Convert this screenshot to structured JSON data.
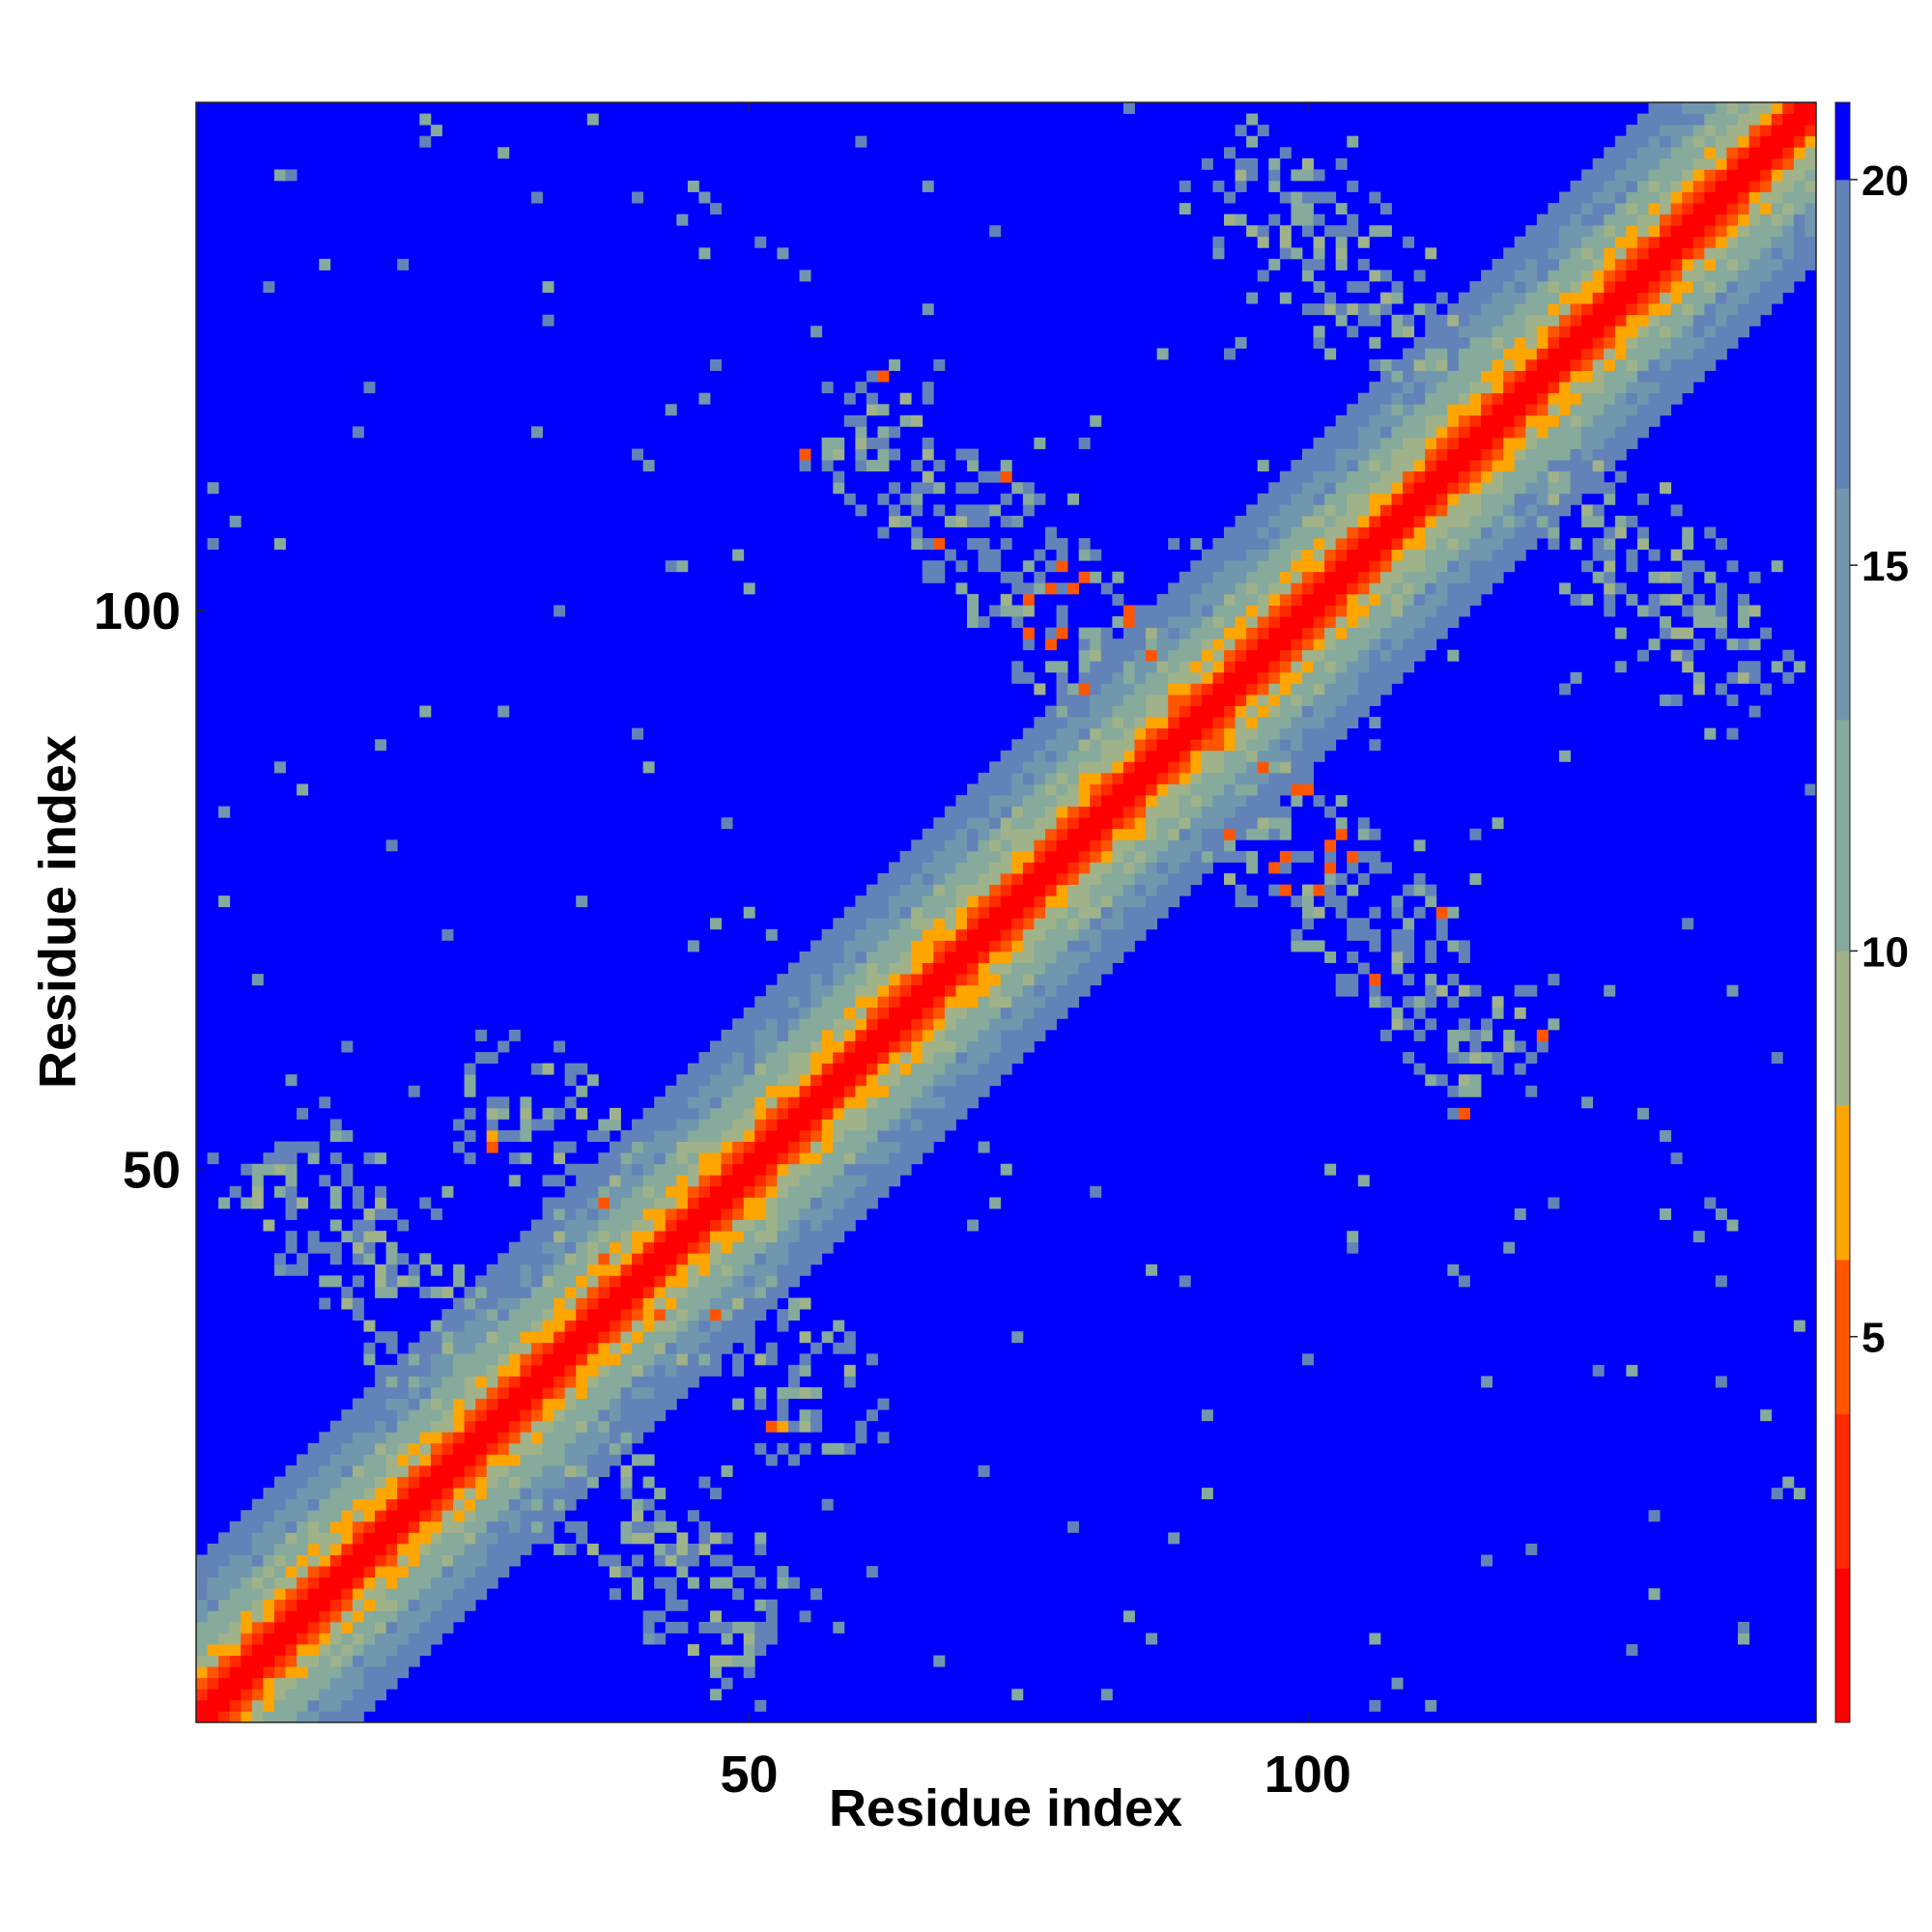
{
  "chart_data": {
    "type": "heatmap",
    "title": "",
    "xlabel": "Residue index",
    "ylabel": "Residue index",
    "n_residues": 145,
    "xlim": [
      1,
      145
    ],
    "ylim": [
      1,
      145
    ],
    "x_ticks": [
      50,
      100
    ],
    "y_ticks": [
      50,
      100
    ],
    "x_tick_labels": [
      "50",
      "100"
    ],
    "y_tick_labels": [
      "50",
      "100"
    ],
    "grid": false,
    "colorbar": {
      "position": "right",
      "ticks": [
        5,
        10,
        15,
        20
      ],
      "tick_labels": [
        "5",
        "10",
        "15",
        "20"
      ],
      "range": [
        0,
        21
      ],
      "bands": [
        {
          "to": 2,
          "color": "#ff0000"
        },
        {
          "to": 4,
          "color": "#ff2a00"
        },
        {
          "to": 6,
          "color": "#ff5500"
        },
        {
          "to": 8,
          "color": "#ffa500"
        },
        {
          "to": 10,
          "color": "#9fb28a"
        },
        {
          "to": 13,
          "color": "#86aa9c"
        },
        {
          "to": 16,
          "color": "#7197ae"
        },
        {
          "to": 20,
          "color": "#6383b8"
        },
        {
          "to": 21,
          "color": "#0000ff"
        }
      ]
    },
    "matrix_description": "symmetric residue-residue distance map (Angstrom), saturated at 20+",
    "features": {
      "diagonal_band_halfwidth": 14,
      "antidiagonal_contacts": [
        {
          "i_range": [
            58,
            88
          ],
          "j_range": [
            86,
            122
          ],
          "min_value": 4
        },
        {
          "i_range": [
            30,
            60
          ],
          "j_range": [
            28,
            52
          ],
          "min_value": 5
        },
        {
          "i_range": [
            20,
            52
          ],
          "j_range": [
            5,
            40
          ],
          "min_value": 11
        },
        {
          "i_range": [
            92,
            128
          ],
          "j_range": [
            110,
            138
          ],
          "min_value": 9
        }
      ]
    }
  }
}
